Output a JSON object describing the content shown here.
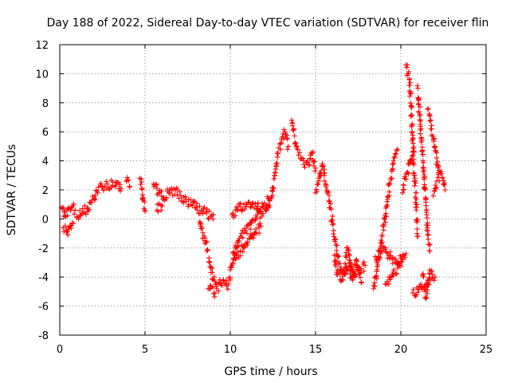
{
  "chart_data": {
    "type": "scatter",
    "title": "Day 188 of 2022, Sidereal Day-to-day VTEC variation (SDTVAR) for receiver flin",
    "xlabel": "GPS time / hours",
    "ylabel": "SDTVAR / TECUs",
    "xlim": [
      0,
      25
    ],
    "ylim": [
      -8,
      12
    ],
    "xticks": [
      "0",
      "5",
      "10",
      "15",
      "20",
      "25"
    ],
    "yticks": [
      "-8",
      "-6",
      "-4",
      "-2",
      "0",
      "2",
      "4",
      "6",
      "8",
      "10",
      "12"
    ],
    "grid": true,
    "marker": "+",
    "color": "#ff0000",
    "series": [
      {
        "name": "SDTVAR",
        "segments": [
          [
            [
              0.1,
              0.8
            ],
            [
              0.3,
              0.2
            ],
            [
              0.5,
              0.7
            ],
            [
              0.7,
              0.8
            ],
            [
              0.9,
              0.6
            ]
          ],
          [
            [
              0.2,
              -0.6
            ],
            [
              0.4,
              -0.9
            ],
            [
              0.6,
              -0.5
            ],
            [
              0.8,
              -0.3
            ]
          ],
          [
            [
              1.0,
              0.1
            ],
            [
              1.3,
              0.4
            ],
            [
              1.6,
              0.7
            ],
            [
              1.9,
              1.3
            ],
            [
              2.2,
              1.9
            ],
            [
              2.5,
              2.2
            ],
            [
              2.8,
              2.4
            ],
            [
              3.1,
              2.3
            ],
            [
              3.4,
              2.5
            ],
            [
              3.6,
              2.1
            ]
          ],
          [
            [
              3.9,
              2.6
            ],
            [
              4.1,
              2.2
            ]
          ],
          [
            [
              4.7,
              2.8
            ],
            [
              4.9,
              1.3
            ],
            [
              5.0,
              0.6
            ]
          ],
          [
            [
              5.5,
              2.4
            ],
            [
              5.8,
              1.8
            ],
            [
              6.1,
              1.5
            ],
            [
              6.4,
              1.8
            ],
            [
              6.8,
              2.0
            ],
            [
              7.1,
              1.6
            ],
            [
              7.4,
              1.2
            ],
            [
              7.7,
              1.0
            ],
            [
              8.0,
              0.8
            ],
            [
              8.3,
              0.6
            ],
            [
              8.6,
              0.4
            ],
            [
              9.0,
              0.3
            ]
          ],
          [
            [
              5.7,
              0.6
            ],
            [
              6.0,
              0.9
            ]
          ],
          [
            [
              8.2,
              -0.2
            ],
            [
              8.5,
              -1.5
            ],
            [
              8.8,
              -3.0
            ],
            [
              9.0,
              -4.2
            ],
            [
              9.2,
              -4.8
            ],
            [
              9.4,
              -4.4
            ],
            [
              9.6,
              -4.2
            ],
            [
              9.8,
              -4.6
            ],
            [
              10.0,
              -4.2
            ]
          ],
          [
            [
              8.7,
              -4.8
            ],
            [
              9.1,
              -5.1
            ]
          ],
          [
            [
              10.0,
              -3.5
            ],
            [
              10.3,
              -2.0
            ],
            [
              10.6,
              -1.2
            ],
            [
              10.9,
              -0.8
            ],
            [
              11.2,
              -0.3
            ],
            [
              11.5,
              0.2
            ],
            [
              11.8,
              0.5
            ],
            [
              12.1,
              0.7
            ],
            [
              12.3,
              0.9
            ]
          ],
          [
            [
              10.1,
              0.3
            ],
            [
              10.4,
              0.6
            ],
            [
              10.8,
              1.0
            ],
            [
              11.2,
              0.8
            ],
            [
              11.6,
              0.7
            ],
            [
              12.0,
              1.1
            ],
            [
              12.4,
              1.4
            ]
          ],
          [
            [
              10.2,
              -2.8
            ],
            [
              10.6,
              -2.2
            ],
            [
              11.0,
              -1.8
            ],
            [
              11.4,
              -1.0
            ],
            [
              11.8,
              -0.5
            ]
          ],
          [
            [
              12.4,
              1.5
            ],
            [
              12.6,
              3.0
            ],
            [
              12.8,
              4.5
            ],
            [
              13.0,
              5.5
            ],
            [
              13.2,
              6.0
            ],
            [
              13.4,
              5.0
            ]
          ],
          [
            [
              13.6,
              6.8
            ],
            [
              13.8,
              5.2
            ],
            [
              14.0,
              4.4
            ],
            [
              14.3,
              4.0
            ],
            [
              14.6,
              3.7
            ],
            [
              14.8,
              4.5
            ],
            [
              15.0,
              3.5
            ]
          ],
          [
            [
              15.0,
              1.8
            ],
            [
              15.2,
              2.8
            ],
            [
              15.4,
              3.8
            ],
            [
              15.6,
              2.4
            ],
            [
              15.8,
              1.2
            ],
            [
              16.0,
              -0.4
            ],
            [
              16.2,
              -1.8
            ],
            [
              16.4,
              -3.0
            ],
            [
              16.6,
              -3.6
            ],
            [
              16.8,
              -3.4
            ],
            [
              17.0,
              -3.0
            ],
            [
              17.3,
              -3.8
            ],
            [
              17.6,
              -3.5
            ],
            [
              17.9,
              -3.2
            ]
          ],
          [
            [
              16.1,
              -2.5
            ],
            [
              16.3,
              -3.8
            ],
            [
              16.6,
              -4.2
            ],
            [
              16.9,
              -2.0
            ],
            [
              17.1,
              -4.0
            ],
            [
              17.4,
              -2.8
            ],
            [
              17.7,
              -4.4
            ]
          ],
          [
            [
              18.4,
              -4.8
            ],
            [
              18.6,
              -3.5
            ],
            [
              18.8,
              -2.0
            ],
            [
              19.0,
              -0.5
            ],
            [
              19.2,
              1.2
            ],
            [
              19.4,
              2.8
            ],
            [
              19.6,
              4.2
            ],
            [
              19.8,
              4.8
            ]
          ],
          [
            [
              18.5,
              -2.6
            ],
            [
              18.9,
              -2.2
            ],
            [
              19.3,
              -2.5
            ],
            [
              19.7,
              -3.0
            ],
            [
              20.1,
              -2.6
            ]
          ],
          [
            [
              19.1,
              -4.5
            ],
            [
              19.5,
              -3.8
            ],
            [
              19.9,
              -3.2
            ],
            [
              20.3,
              -2.4
            ]
          ],
          [
            [
              20.3,
              10.6
            ],
            [
              20.5,
              9.6
            ],
            [
              20.6,
              7.8
            ],
            [
              20.7,
              5.5
            ],
            [
              20.8,
              3.0
            ],
            [
              20.9,
              1.0
            ],
            [
              21.0,
              -1.2
            ]
          ],
          [
            [
              20.1,
              1.8
            ],
            [
              20.4,
              3.2
            ],
            [
              20.7,
              4.6
            ]
          ],
          [
            [
              21.0,
              9.0
            ],
            [
              21.1,
              7.2
            ],
            [
              21.2,
              5.6
            ],
            [
              21.3,
              4.0
            ],
            [
              21.4,
              2.2
            ],
            [
              21.5,
              0.6
            ],
            [
              21.6,
              -1.4
            ],
            [
              21.7,
              -2.2
            ]
          ],
          [
            [
              21.3,
              -3.8
            ],
            [
              21.4,
              -4.6
            ],
            [
              21.5,
              -5.4
            ],
            [
              21.6,
              -4.2
            ],
            [
              21.8,
              -3.6
            ]
          ],
          [
            [
              21.6,
              7.6
            ],
            [
              21.8,
              6.2
            ],
            [
              22.0,
              5.0
            ],
            [
              22.1,
              4.2
            ],
            [
              22.2,
              3.2
            ]
          ],
          [
            [
              21.9,
              1.6
            ],
            [
              22.1,
              2.6
            ],
            [
              22.3,
              3.2
            ],
            [
              22.5,
              2.4
            ],
            [
              22.6,
              2.0
            ]
          ],
          [
            [
              22.0,
              -4.0
            ],
            [
              20.7,
              -5.1
            ]
          ]
        ]
      }
    ]
  }
}
